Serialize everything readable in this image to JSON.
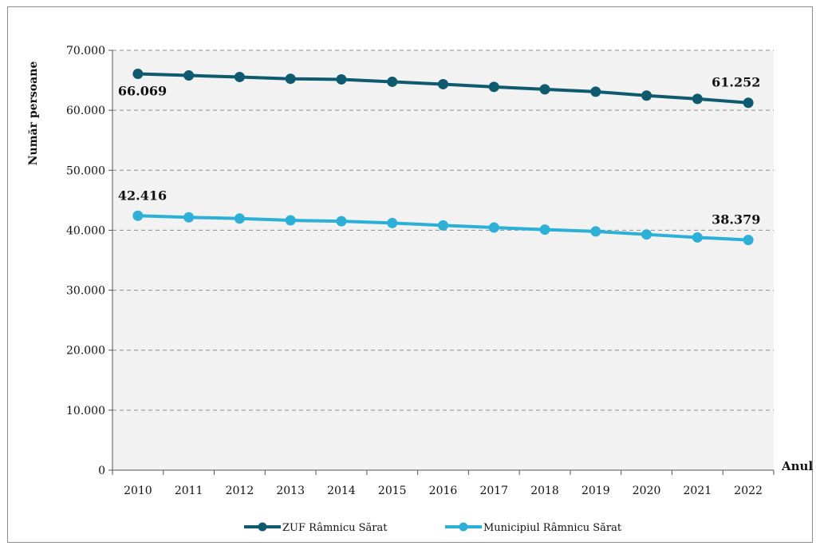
{
  "chart_data": {
    "type": "line",
    "title": "",
    "xlabel": "Anul",
    "ylabel": "Număr persoane",
    "categories": [
      "2010",
      "2011",
      "2012",
      "2013",
      "2014",
      "2015",
      "2016",
      "2017",
      "2018",
      "2019",
      "2020",
      "2021",
      "2022"
    ],
    "ylim": [
      0,
      70000
    ],
    "yticks": [
      0,
      10000,
      20000,
      30000,
      40000,
      50000,
      60000,
      70000
    ],
    "ytick_labels": [
      "0",
      "10.000",
      "20.000",
      "30.000",
      "40.000",
      "50.000",
      "60.000",
      "70.000"
    ],
    "grid": "horizontal dashed",
    "legend_position": "bottom",
    "series": [
      {
        "name": "ZUF Râmnicu Sărat",
        "color": "#0e5a6e",
        "values": [
          66069,
          65800,
          65550,
          65250,
          65150,
          64750,
          64350,
          63900,
          63500,
          63100,
          62450,
          61900,
          61252
        ],
        "data_labels": [
          {
            "index": 0,
            "text": "66.069"
          },
          {
            "index": 12,
            "text": "61.252"
          }
        ]
      },
      {
        "name": "Municipiul Râmnicu Sărat",
        "color": "#2cb0d8",
        "values": [
          42416,
          42150,
          41950,
          41650,
          41500,
          41200,
          40800,
          40450,
          40100,
          39800,
          39300,
          38800,
          38379
        ],
        "data_labels": [
          {
            "index": 0,
            "text": "42.416"
          },
          {
            "index": 12,
            "text": "38.379"
          }
        ]
      }
    ]
  },
  "colors": {
    "plot_background": "#f2f2f2",
    "grid": "#8c8c8c"
  }
}
